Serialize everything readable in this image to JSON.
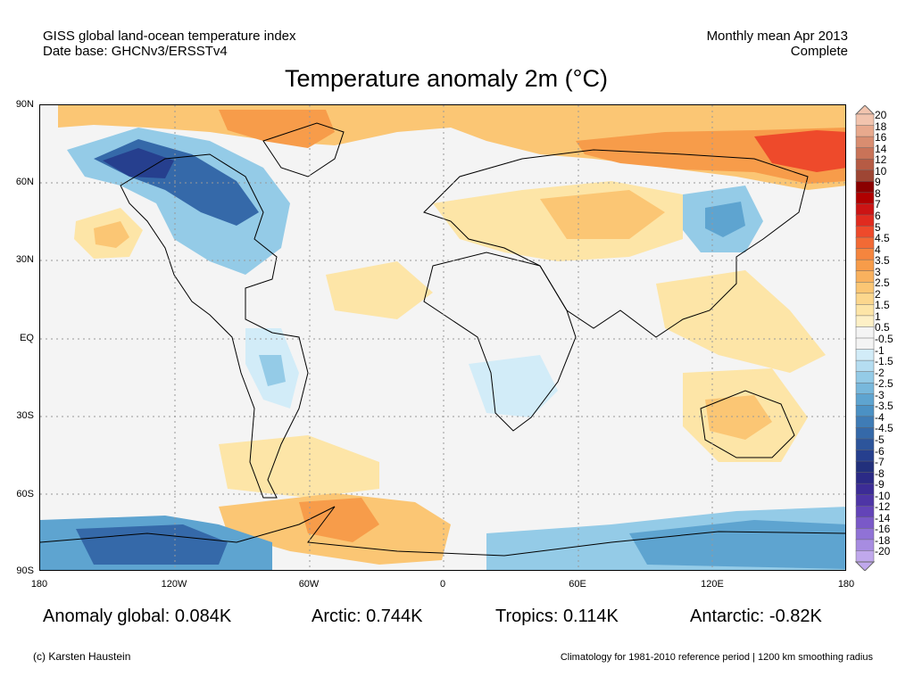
{
  "header": {
    "left_line1": "GISS global land-ocean temperature index",
    "left_line2": "Date base: GHCNv3/ERSSTv4",
    "right_line1": "Monthly mean Apr 2013",
    "right_line2": "Complete"
  },
  "title": "Temperature anomaly 2m (°C)",
  "axes": {
    "lat_labels": [
      "90N",
      "60N",
      "30N",
      "EQ",
      "30S",
      "60S",
      "90S"
    ],
    "lon_labels": [
      "180",
      "120W",
      "60W",
      "0",
      "60E",
      "120E",
      "180"
    ]
  },
  "colorbar": {
    "labels": [
      "20",
      "18",
      "16",
      "14",
      "12",
      "10",
      "9",
      "8",
      "7",
      "6",
      "5",
      "4.5",
      "4",
      "3.5",
      "3",
      "2.5",
      "2",
      "1.5",
      "1",
      "0.5",
      "-0.5",
      "-1",
      "-1.5",
      "-2",
      "-2.5",
      "-3",
      "-3.5",
      "-4",
      "-4.5",
      "-5",
      "-6",
      "-7",
      "-8",
      "-9",
      "-10",
      "-12",
      "-14",
      "-16",
      "-18",
      "-20"
    ],
    "colors": [
      "#f2c4ae",
      "#e8a98d",
      "#d98d70",
      "#c97358",
      "#b65b44",
      "#9e4634",
      "#8b0000",
      "#b00000",
      "#cc1414",
      "#e02b1f",
      "#ee4a2b",
      "#f26a35",
      "#f5853e",
      "#f79c4a",
      "#f9b15e",
      "#fbc674",
      "#fcd78d",
      "#fde5a7",
      "#fdf0c6",
      "#f4f4f4",
      "#f4f4f4",
      "#d2ecf8",
      "#b5ddf1",
      "#94cbe7",
      "#78b8dc",
      "#5ea4d0",
      "#4b91c4",
      "#3f7cb6",
      "#3569a9",
      "#2d559b",
      "#263f8e",
      "#22307c",
      "#2b2a86",
      "#3c2c96",
      "#4e35a6",
      "#6344b8",
      "#7a59c8",
      "#9072d6",
      "#a78ce1",
      "#c0a8ec"
    ]
  },
  "stats": {
    "global": "Anomaly global: 0.084K",
    "arctic": "Arctic: 0.744K",
    "tropics": "Tropics: 0.114K",
    "antarctic": "Antarctic: -0.82K"
  },
  "footer": {
    "credit": "(c) Karsten Haustein",
    "note": "Climatology for 1981-2010 reference period | 1200 km smoothing radius"
  },
  "map": {
    "background_color": "#f4f4f4",
    "colors": {
      "warm1": "#fde5a7",
      "warm2": "#fbc674",
      "warm3": "#f79c4a",
      "warm4": "#ee4a2b",
      "cold1": "#d2ecf8",
      "cold2": "#94cbe7",
      "cold3": "#5ea4d0",
      "cold4": "#3569a9",
      "cold5": "#263f8e"
    }
  }
}
